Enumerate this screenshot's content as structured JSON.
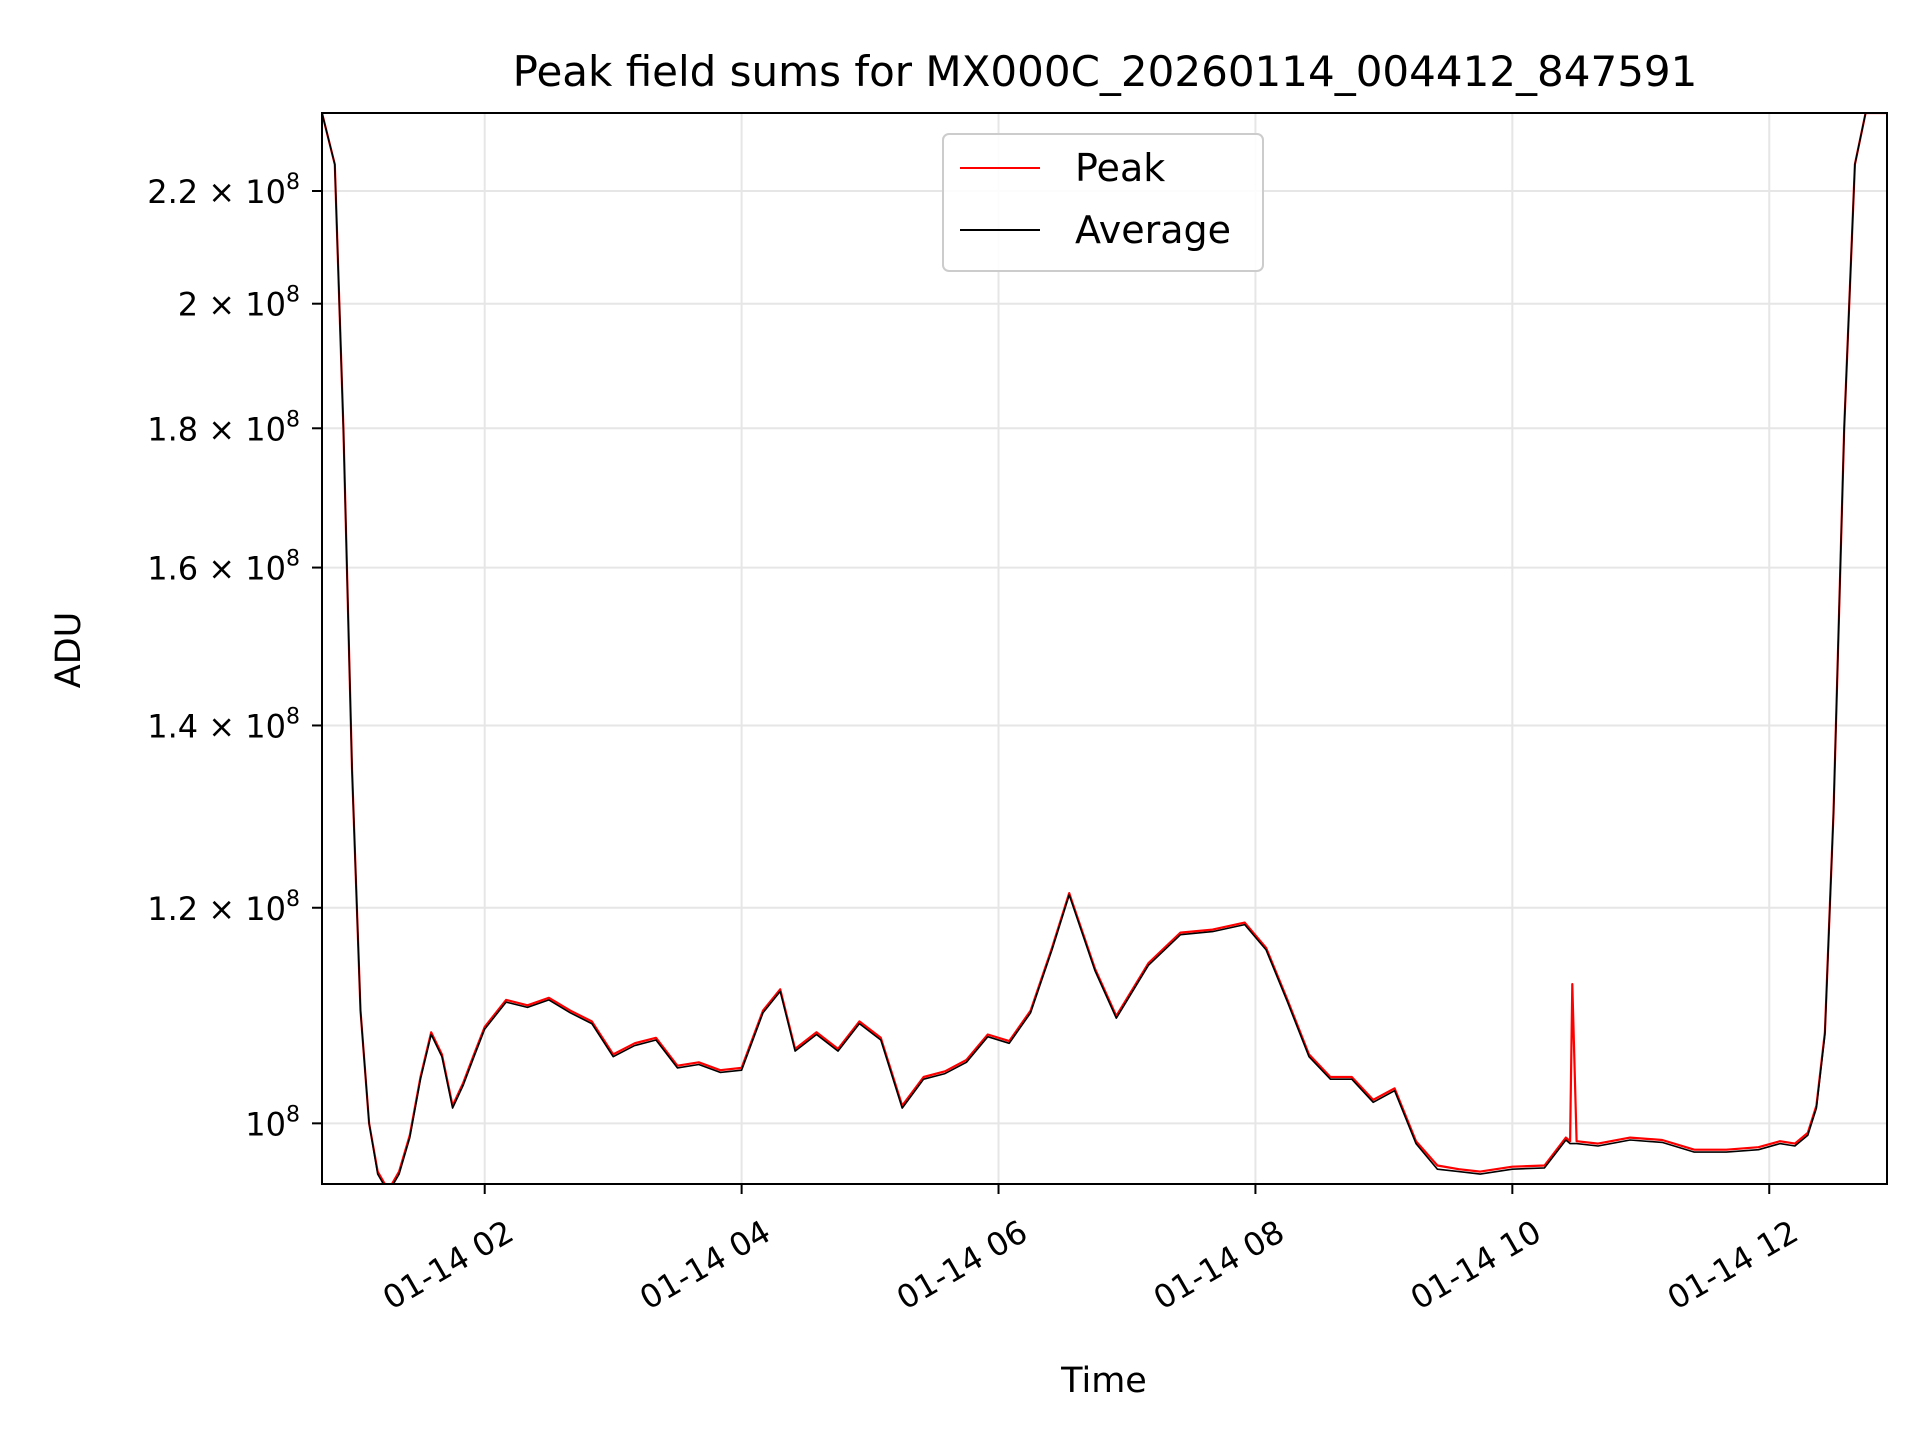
{
  "chart_data": {
    "type": "line",
    "title": "Peak field sums for MX000C_20260114_004412_847591",
    "xlabel": "Time",
    "ylabel": "ADU",
    "y_scale": "log",
    "grid": true,
    "legend_position": "top-center",
    "xlim": [
      "2026-01-14 00:44",
      "2026-01-14 12:55"
    ],
    "ylim": [
      95000000,
      235000000
    ],
    "x_ticks": [
      "2026-01-14 02:00",
      "2026-01-14 04:00",
      "2026-01-14 06:00",
      "2026-01-14 08:00",
      "2026-01-14 10:00",
      "2026-01-14 12:00"
    ],
    "x_tick_labels": [
      "01-14 02",
      "01-14 04",
      "01-14 06",
      "01-14 08",
      "01-14 10",
      "01-14 12"
    ],
    "y_ticks": [
      100000000,
      120000000,
      140000000,
      160000000,
      180000000,
      200000000,
      220000000
    ],
    "y_tick_labels": [
      {
        "mant": "",
        "exp": "8"
      },
      {
        "mant": "1.2",
        "exp": "8"
      },
      {
        "mant": "1.4",
        "exp": "8"
      },
      {
        "mant": "1.6",
        "exp": "8"
      },
      {
        "mant": "1.8",
        "exp": "8"
      },
      {
        "mant": "2",
        "exp": "8"
      },
      {
        "mant": "2.2",
        "exp": "8"
      }
    ],
    "series": [
      {
        "name": "Peak",
        "color": "#ff0000",
        "x": [
          "2026-01-14 00:44",
          "2026-01-14 00:50",
          "2026-01-14 00:54",
          "2026-01-14 00:58",
          "2026-01-14 01:02",
          "2026-01-14 01:06",
          "2026-01-14 01:10",
          "2026-01-14 01:15",
          "2026-01-14 01:20",
          "2026-01-14 01:25",
          "2026-01-14 01:30",
          "2026-01-14 01:35",
          "2026-01-14 01:40",
          "2026-01-14 01:45",
          "2026-01-14 01:50",
          "2026-01-14 01:55",
          "2026-01-14 02:00",
          "2026-01-14 02:10",
          "2026-01-14 02:20",
          "2026-01-14 02:30",
          "2026-01-14 02:40",
          "2026-01-14 02:50",
          "2026-01-14 03:00",
          "2026-01-14 03:10",
          "2026-01-14 03:20",
          "2026-01-14 03:30",
          "2026-01-14 03:40",
          "2026-01-14 03:50",
          "2026-01-14 04:00",
          "2026-01-14 04:10",
          "2026-01-14 04:18",
          "2026-01-14 04:25",
          "2026-01-14 04:35",
          "2026-01-14 04:45",
          "2026-01-14 04:55",
          "2026-01-14 05:05",
          "2026-01-14 05:15",
          "2026-01-14 05:25",
          "2026-01-14 05:35",
          "2026-01-14 05:45",
          "2026-01-14 05:55",
          "2026-01-14 06:05",
          "2026-01-14 06:15",
          "2026-01-14 06:25",
          "2026-01-14 06:33",
          "2026-01-14 06:45",
          "2026-01-14 06:55",
          "2026-01-14 07:10",
          "2026-01-14 07:25",
          "2026-01-14 07:40",
          "2026-01-14 07:55",
          "2026-01-14 08:05",
          "2026-01-14 08:15",
          "2026-01-14 08:25",
          "2026-01-14 08:35",
          "2026-01-14 08:45",
          "2026-01-14 08:55",
          "2026-01-14 09:05",
          "2026-01-14 09:15",
          "2026-01-14 09:25",
          "2026-01-14 09:35",
          "2026-01-14 09:45",
          "2026-01-14 10:00",
          "2026-01-14 10:15",
          "2026-01-14 10:25",
          "2026-01-14 10:27",
          "2026-01-14 10:28",
          "2026-01-14 10:30",
          "2026-01-14 10:40",
          "2026-01-14 10:55",
          "2026-01-14 11:10",
          "2026-01-14 11:25",
          "2026-01-14 11:40",
          "2026-01-14 11:55",
          "2026-01-14 12:05",
          "2026-01-14 12:12",
          "2026-01-14 12:18",
          "2026-01-14 12:22",
          "2026-01-14 12:26",
          "2026-01-14 12:30",
          "2026-01-14 12:35",
          "2026-01-14 12:40",
          "2026-01-14 12:45",
          "2026-01-14 12:55"
        ],
        "values": [
          235000000,
          225000000,
          180000000,
          135000000,
          110000000,
          100000000,
          96000000,
          94500000,
          96000000,
          99000000,
          104000000,
          108000000,
          106000000,
          101500000,
          103500000,
          106000000,
          108500000,
          111000000,
          110500000,
          111200000,
          110000000,
          109000000,
          106000000,
          107000000,
          107500000,
          105000000,
          105300000,
          104600000,
          104800000,
          110000000,
          112000000,
          106500000,
          108000000,
          106500000,
          109000000,
          107500000,
          101500000,
          104000000,
          104500000,
          105500000,
          107800000,
          107200000,
          110000000,
          116000000,
          121500000,
          114000000,
          109500000,
          114500000,
          117500000,
          117800000,
          118500000,
          116000000,
          111000000,
          106000000,
          104000000,
          104000000,
          102000000,
          103000000,
          98500000,
          96500000,
          96200000,
          96000000,
          96400000,
          96500000,
          98800000,
          98500000,
          112500000,
          98500000,
          98300000,
          98800000,
          98600000,
          97800000,
          97800000,
          98000000,
          98500000,
          98300000,
          99200000,
          101500000,
          108000000,
          130000000,
          180000000,
          225000000,
          235000000,
          235000000
        ]
      },
      {
        "name": "Average",
        "color": "#000000",
        "x": [
          "2026-01-14 00:44",
          "2026-01-14 00:50",
          "2026-01-14 00:54",
          "2026-01-14 00:58",
          "2026-01-14 01:02",
          "2026-01-14 01:06",
          "2026-01-14 01:10",
          "2026-01-14 01:15",
          "2026-01-14 01:20",
          "2026-01-14 01:25",
          "2026-01-14 01:30",
          "2026-01-14 01:35",
          "2026-01-14 01:40",
          "2026-01-14 01:45",
          "2026-01-14 01:50",
          "2026-01-14 01:55",
          "2026-01-14 02:00",
          "2026-01-14 02:10",
          "2026-01-14 02:20",
          "2026-01-14 02:30",
          "2026-01-14 02:40",
          "2026-01-14 02:50",
          "2026-01-14 03:00",
          "2026-01-14 03:10",
          "2026-01-14 03:20",
          "2026-01-14 03:30",
          "2026-01-14 03:40",
          "2026-01-14 03:50",
          "2026-01-14 04:00",
          "2026-01-14 04:10",
          "2026-01-14 04:18",
          "2026-01-14 04:25",
          "2026-01-14 04:35",
          "2026-01-14 04:45",
          "2026-01-14 04:55",
          "2026-01-14 05:05",
          "2026-01-14 05:15",
          "2026-01-14 05:25",
          "2026-01-14 05:35",
          "2026-01-14 05:45",
          "2026-01-14 05:55",
          "2026-01-14 06:05",
          "2026-01-14 06:15",
          "2026-01-14 06:25",
          "2026-01-14 06:33",
          "2026-01-14 06:45",
          "2026-01-14 06:55",
          "2026-01-14 07:10",
          "2026-01-14 07:25",
          "2026-01-14 07:40",
          "2026-01-14 07:55",
          "2026-01-14 08:05",
          "2026-01-14 08:15",
          "2026-01-14 08:25",
          "2026-01-14 08:35",
          "2026-01-14 08:45",
          "2026-01-14 08:55",
          "2026-01-14 09:05",
          "2026-01-14 09:15",
          "2026-01-14 09:25",
          "2026-01-14 09:35",
          "2026-01-14 09:45",
          "2026-01-14 10:00",
          "2026-01-14 10:15",
          "2026-01-14 10:25",
          "2026-01-14 10:27",
          "2026-01-14 10:28",
          "2026-01-14 10:30",
          "2026-01-14 10:40",
          "2026-01-14 10:55",
          "2026-01-14 11:10",
          "2026-01-14 11:25",
          "2026-01-14 11:40",
          "2026-01-14 11:55",
          "2026-01-14 12:05",
          "2026-01-14 12:12",
          "2026-01-14 12:18",
          "2026-01-14 12:22",
          "2026-01-14 12:26",
          "2026-01-14 12:30",
          "2026-01-14 12:35",
          "2026-01-14 12:40",
          "2026-01-14 12:45",
          "2026-01-14 12:55"
        ],
        "values": [
          235000000,
          225000000,
          180000000,
          135000000,
          110000000,
          100000000,
          95800000,
          94300000,
          95800000,
          98800000,
          103800000,
          107800000,
          105800000,
          101300000,
          103300000,
          105800000,
          108300000,
          110800000,
          110300000,
          111000000,
          109800000,
          108800000,
          105800000,
          106800000,
          107300000,
          104800000,
          105100000,
          104400000,
          104600000,
          109800000,
          111800000,
          106300000,
          107800000,
          106300000,
          108800000,
          107300000,
          101300000,
          103800000,
          104300000,
          105300000,
          107600000,
          107000000,
          109800000,
          115800000,
          121300000,
          113800000,
          109300000,
          114300000,
          117300000,
          117600000,
          118300000,
          115800000,
          110800000,
          105800000,
          103800000,
          103800000,
          101800000,
          102800000,
          98300000,
          96200000,
          96000000,
          95800000,
          96200000,
          96300000,
          98600000,
          98300000,
          98300000,
          98300000,
          98100000,
          98600000,
          98400000,
          97600000,
          97600000,
          97800000,
          98300000,
          98100000,
          99000000,
          101300000,
          107800000,
          130000000,
          180000000,
          225000000,
          235000000,
          235000000
        ]
      }
    ]
  }
}
